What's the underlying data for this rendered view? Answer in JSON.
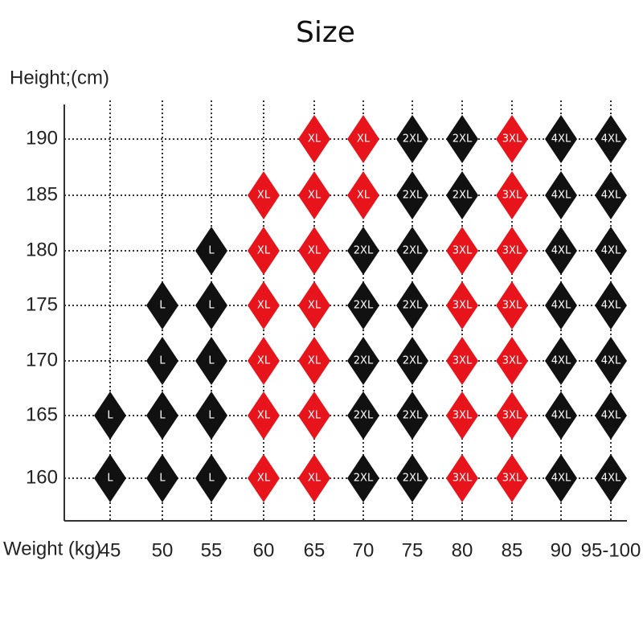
{
  "title": "Size",
  "y_axis_label": "Height;(cm)",
  "x_axis_label": "Weight (kg)",
  "heights": [
    "190",
    "185",
    "180",
    "175",
    "170",
    "165",
    "160"
  ],
  "weights": [
    "45",
    "50",
    "55",
    "60",
    "65",
    "70",
    "75",
    "80",
    "85",
    "90",
    "95-100"
  ],
  "size_colors": {
    "L": "#111111",
    "XL": "#e8141b",
    "2XL": "#111111",
    "3XL": "#e8141b",
    "4XL": "#111111"
  },
  "cells": [
    [
      null,
      null,
      null,
      null,
      "XL",
      "XL",
      "2XL",
      "2XL",
      "3XL",
      "4XL",
      "4XL"
    ],
    [
      null,
      null,
      null,
      "XL",
      "XL",
      "XL",
      "2XL",
      "2XL",
      "3XL",
      "4XL",
      "4XL"
    ],
    [
      null,
      null,
      "L",
      "XL",
      "XL",
      "2XL",
      "2XL",
      "3XL",
      "3XL",
      "4XL",
      "4XL"
    ],
    [
      null,
      "L",
      "L",
      "XL",
      "XL",
      "2XL",
      "2XL",
      "3XL",
      "3XL",
      "4XL",
      "4XL"
    ],
    [
      null,
      "L",
      "L",
      "XL",
      "XL",
      "2XL",
      "2XL",
      "3XL",
      "3XL",
      "4XL",
      "4XL"
    ],
    [
      "L",
      "L",
      "L",
      "XL",
      "XL",
      "2XL",
      "2XL",
      "3XL",
      "3XL",
      "4XL",
      "4XL"
    ],
    [
      "L",
      "L",
      "L",
      "XL",
      "XL",
      "2XL",
      "2XL",
      "3XL",
      "3XL",
      "4XL",
      "4XL"
    ]
  ]
}
